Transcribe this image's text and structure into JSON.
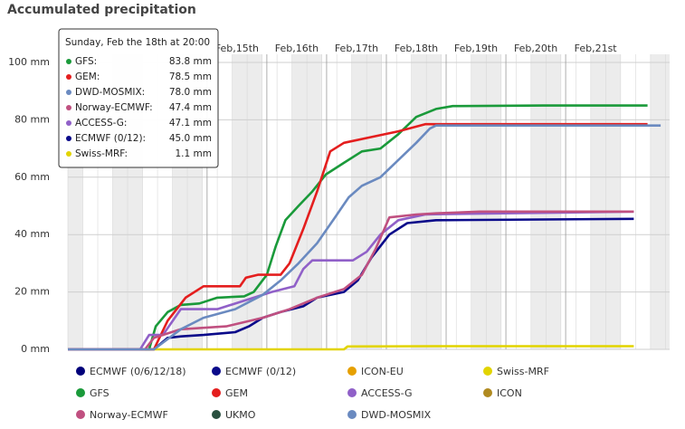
{
  "chart_data": {
    "type": "line",
    "title": "Accumulated precipitation",
    "xlim": [
      12.67,
      22.74
    ],
    "xticks": [
      {
        "value": 15.5,
        "label": "Feb,15th"
      },
      {
        "value": 16.5,
        "label": "Feb,16th"
      },
      {
        "value": 17.5,
        "label": "Feb,17th"
      },
      {
        "value": 18.5,
        "label": "Feb,18th"
      },
      {
        "value": 19.5,
        "label": "Feb,19th"
      },
      {
        "value": 20.5,
        "label": "Feb,20th"
      },
      {
        "value": 21.5,
        "label": "Feb,21st"
      }
    ],
    "ylim": [
      0,
      100
    ],
    "yticks": [
      {
        "value": 0,
        "label": "0 mm"
      },
      {
        "value": 20,
        "label": "20 mm"
      },
      {
        "value": 40,
        "label": "40 mm"
      },
      {
        "value": 60,
        "label": "60 mm"
      },
      {
        "value": 80,
        "label": "80 mm"
      },
      {
        "value": 100,
        "label": "100 mm"
      }
    ],
    "grid": true,
    "series": [
      {
        "name": "ECMWF (0/6/12/18)",
        "color": "#00007a",
        "x": [],
        "values": []
      },
      {
        "name": "ECMWF (0/12)",
        "color": "#0a0a8a",
        "x": [
          12.67,
          14.11,
          14.34,
          14.56,
          14.94,
          15.47,
          15.7,
          15.93,
          16.23,
          16.61,
          16.84,
          17.29,
          17.52,
          17.75,
          18.05,
          18.35,
          18.83,
          22.14
        ],
        "values": [
          0,
          0,
          4,
          4.5,
          5,
          6,
          8,
          11,
          13,
          15,
          18,
          20,
          24,
          32,
          40,
          44,
          45,
          45.5
        ]
      },
      {
        "name": "ICON-EU",
        "color": "#e6a000",
        "x": [],
        "values": []
      },
      {
        "name": "Swiss-MRF",
        "color": "#e2d400",
        "x": [
          12.67,
          17.29,
          17.35,
          18.83,
          22.14
        ],
        "values": [
          0,
          0,
          1,
          1.1,
          1.1
        ]
      },
      {
        "name": "GFS",
        "color": "#1a9a3a",
        "x": [
          12.67,
          14.03,
          14.14,
          14.34,
          14.56,
          14.87,
          15.17,
          15.62,
          15.78,
          16.0,
          16.15,
          16.31,
          16.53,
          16.76,
          16.99,
          17.29,
          17.59,
          17.9,
          18.2,
          18.5,
          18.83,
          19.11,
          20.62,
          22.37
        ],
        "values": [
          0,
          0,
          8,
          13,
          15.5,
          16,
          18,
          18.5,
          20,
          26,
          36,
          45,
          50,
          55,
          61,
          65,
          69,
          70,
          75,
          81,
          83.8,
          84.8,
          85,
          85
        ]
      },
      {
        "name": "GEM",
        "color": "#e41e1e",
        "x": [
          12.67,
          14.11,
          14.34,
          14.64,
          14.94,
          15.55,
          15.65,
          15.85,
          16.23,
          16.38,
          16.61,
          16.84,
          17.06,
          17.29,
          17.75,
          18.2,
          18.65,
          22.37
        ],
        "values": [
          0,
          0,
          10,
          18,
          22,
          22,
          25,
          26,
          26,
          30,
          42,
          55,
          69,
          72,
          74,
          76,
          78.5,
          78.5
        ]
      },
      {
        "name": "ACCESS-G",
        "color": "#9060c8",
        "x": [
          12.67,
          13.88,
          14.03,
          14.26,
          14.56,
          15.17,
          16.08,
          16.46,
          16.61,
          16.76,
          17.44,
          17.67,
          17.9,
          18.2,
          18.65,
          18.83,
          22.14
        ],
        "values": [
          0,
          0,
          5,
          5,
          14,
          14,
          20,
          22,
          28,
          31,
          31,
          34,
          40,
          45,
          47,
          47.1,
          48
        ]
      },
      {
        "name": "ICON",
        "color": "#b08a20",
        "x": [],
        "values": []
      },
      {
        "name": "Norway-ECMWF",
        "color": "#c05080",
        "x": [
          12.67,
          13.96,
          14.11,
          14.56,
          15.32,
          15.93,
          16.38,
          16.84,
          17.29,
          17.59,
          17.82,
          18.05,
          18.5,
          18.83,
          19.56,
          22.14
        ],
        "values": [
          0,
          0,
          4,
          7,
          8,
          11,
          14,
          18,
          21,
          26,
          35,
          46,
          47,
          47.4,
          48,
          48
        ]
      },
      {
        "name": "UKMO",
        "color": "#2a5040",
        "x": [],
        "values": []
      },
      {
        "name": "DWD-MOSMIX",
        "color": "#6a8ac0",
        "x": [
          12.67,
          14.11,
          14.56,
          14.94,
          15.47,
          15.93,
          16.23,
          16.53,
          16.84,
          17.14,
          17.37,
          17.59,
          17.9,
          18.2,
          18.5,
          18.73,
          18.83,
          22.59
        ],
        "values": [
          0,
          0,
          7,
          11,
          14,
          19,
          24,
          30,
          37,
          46,
          53,
          57,
          60,
          66,
          72,
          77,
          78,
          78
        ]
      }
    ],
    "tooltip": {
      "title": "Sunday, Feb the 18th at 20:00",
      "rows": [
        {
          "label": "GFS:",
          "value": "83.8 mm",
          "color": "#1a9a3a"
        },
        {
          "label": "GEM:",
          "value": "78.5 mm",
          "color": "#e41e1e"
        },
        {
          "label": "DWD-MOSMIX:",
          "value": "78.0 mm",
          "color": "#6a8ac0"
        },
        {
          "label": "Norway-ECMWF:",
          "value": "47.4 mm",
          "color": "#c05080"
        },
        {
          "label": "ACCESS-G:",
          "value": "47.1 mm",
          "color": "#9060c8"
        },
        {
          "label": "ECMWF (0/12):",
          "value": "45.0 mm",
          "color": "#0a0a8a"
        },
        {
          "label": "Swiss-MRF:",
          "value": "1.1 mm",
          "color": "#e2d400"
        }
      ]
    }
  }
}
